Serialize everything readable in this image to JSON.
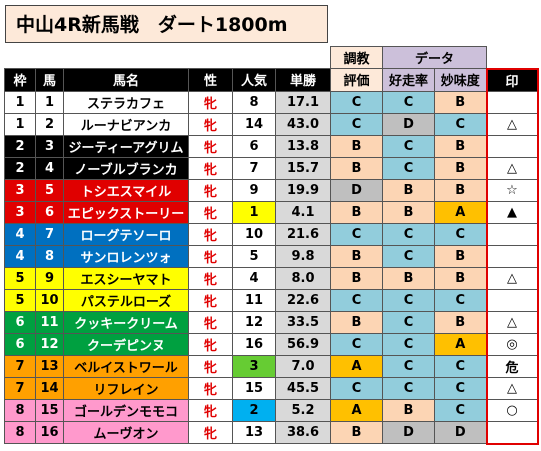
{
  "header": {
    "title": "中山4R新馬戦　ダート1800m"
  },
  "table": {
    "group_headers": {
      "training": "調教",
      "data": "データ"
    },
    "columns": [
      "枠",
      "馬",
      "馬名",
      "性",
      "人気",
      "単勝",
      "評価",
      "好走率",
      "妙味度",
      "印"
    ],
    "rows": [
      {
        "waku": 1,
        "num": 1,
        "name": "ステラカフェ",
        "sex": "牝",
        "pop": 8,
        "odds": "17.1",
        "eval": "C",
        "rate": "C",
        "value": "B"
      },
      {
        "waku": 1,
        "num": 2,
        "name": "ルーナビアンカ",
        "sex": "牝",
        "pop": 14,
        "odds": "43.0",
        "eval": "C",
        "rate": "D",
        "value": "C",
        "mark": "△"
      },
      {
        "waku": 2,
        "num": 3,
        "name": "ジーティーアグリム",
        "sex": "牝",
        "pop": 6,
        "odds": "13.8",
        "eval": "B",
        "rate": "C",
        "value": "B"
      },
      {
        "waku": 2,
        "num": 4,
        "name": "ノーブルブランカ",
        "sex": "牝",
        "pop": 7,
        "odds": "15.7",
        "eval": "B",
        "rate": "C",
        "value": "B",
        "mark": "△"
      },
      {
        "waku": 3,
        "num": 5,
        "name": "トシエスマイル",
        "sex": "牝",
        "pop": 9,
        "odds": "19.9",
        "eval": "D",
        "rate": "B",
        "value": "B",
        "mark": "☆"
      },
      {
        "waku": 3,
        "num": 6,
        "name": "エピックストーリー",
        "sex": "牝",
        "pop": 1,
        "odds": "4.1",
        "eval": "B",
        "rate": "B",
        "value": "A",
        "mark": "▲"
      },
      {
        "waku": 4,
        "num": 7,
        "name": "ローグテソーロ",
        "sex": "牝",
        "pop": 10,
        "odds": "21.6",
        "eval": "C",
        "rate": "C",
        "value": "C"
      },
      {
        "waku": 4,
        "num": 8,
        "name": "サンロレンツォ",
        "sex": "牝",
        "pop": 5,
        "odds": "9.8",
        "eval": "B",
        "rate": "C",
        "value": "B"
      },
      {
        "waku": 5,
        "num": 9,
        "name": "エスシーヤマト",
        "sex": "牝",
        "pop": 4,
        "odds": "8.0",
        "eval": "B",
        "rate": "B",
        "value": "B",
        "mark": "△"
      },
      {
        "waku": 5,
        "num": 10,
        "name": "パステルローズ",
        "sex": "牝",
        "pop": 11,
        "odds": "22.6",
        "eval": "C",
        "rate": "C",
        "value": "C"
      },
      {
        "waku": 6,
        "num": 11,
        "name": "クッキークリーム",
        "sex": "牝",
        "pop": 12,
        "odds": "33.5",
        "eval": "B",
        "rate": "C",
        "value": "B",
        "mark": "△"
      },
      {
        "waku": 6,
        "num": 12,
        "name": "クーデピンヌ",
        "sex": "牝",
        "pop": 16,
        "odds": "56.9",
        "eval": "C",
        "rate": "C",
        "value": "A",
        "mark": "◎"
      },
      {
        "waku": 7,
        "num": 13,
        "name": "ベルイストワール",
        "sex": "牝",
        "pop": 3,
        "odds": "7.0",
        "eval": "A",
        "rate": "C",
        "value": "C",
        "mark": "危"
      },
      {
        "waku": 7,
        "num": 14,
        "name": "リフレイン",
        "sex": "牝",
        "pop": 15,
        "odds": "45.5",
        "eval": "C",
        "rate": "C",
        "value": "C",
        "mark": "△"
      },
      {
        "waku": 8,
        "num": 15,
        "name": "ゴールデンモモコ",
        "sex": "牝",
        "pop": 2,
        "odds": "5.2",
        "eval": "A",
        "rate": "B",
        "value": "C",
        "mark": "○"
      },
      {
        "waku": 8,
        "num": 16,
        "name": "ムーヴオン",
        "sex": "牝",
        "pop": 13,
        "odds": "38.6",
        "eval": "B",
        "rate": "D",
        "value": "D"
      }
    ]
  }
}
